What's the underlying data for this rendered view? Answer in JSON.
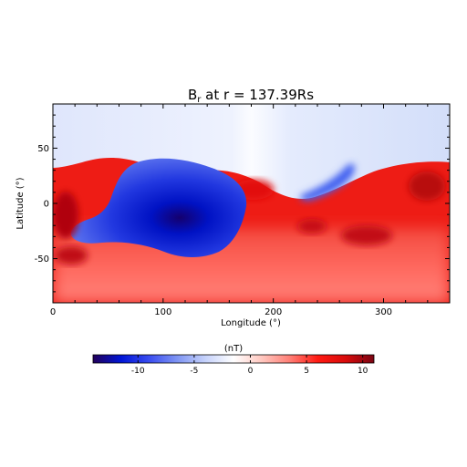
{
  "chart_data": {
    "type": "heatmap",
    "title": {
      "main": "B",
      "subscript": "r",
      "rest": " at r = 137.39Rs"
    },
    "xlabel": "Longitude (°)",
    "ylabel": "Latitude (°)",
    "xlim": [
      0,
      360
    ],
    "ylim": [
      -90,
      90
    ],
    "x_ticks": [
      0,
      100,
      200,
      300
    ],
    "y_ticks": [
      -50,
      0,
      50
    ],
    "grid": false,
    "colorbar": {
      "label": "(nT)",
      "range": [
        -14,
        11
      ],
      "ticks": [
        -10,
        -5,
        0,
        5,
        10
      ],
      "colors": [
        "#22005a",
        "#0015d6",
        "#3a4df0",
        "#7f95f3",
        "#c6d2fb",
        "#ffffff",
        "#ffc8c0",
        "#ff7f76",
        "#ff1a12",
        "#d80b0b",
        "#7a0513"
      ]
    },
    "features": [
      {
        "name": "northern-cap",
        "sign": "negative",
        "typical_value": -2,
        "lat_range": [
          35,
          90
        ],
        "lon_range": [
          0,
          360
        ]
      },
      {
        "name": "main-negative-lobe",
        "sign": "negative",
        "typical_value": -11,
        "lat_range": [
          -45,
          40
        ],
        "lon_range": [
          15,
          180
        ]
      },
      {
        "name": "equatorial-positive-band",
        "sign": "positive",
        "typical_value": 6,
        "lat_range": [
          -90,
          45
        ],
        "lon_range": [
          0,
          360
        ]
      },
      {
        "name": "southern-strong-positive",
        "sign": "positive",
        "typical_value": 9,
        "lat_range": [
          -70,
          -20
        ],
        "lon_range": [
          0,
          60
        ]
      }
    ]
  }
}
